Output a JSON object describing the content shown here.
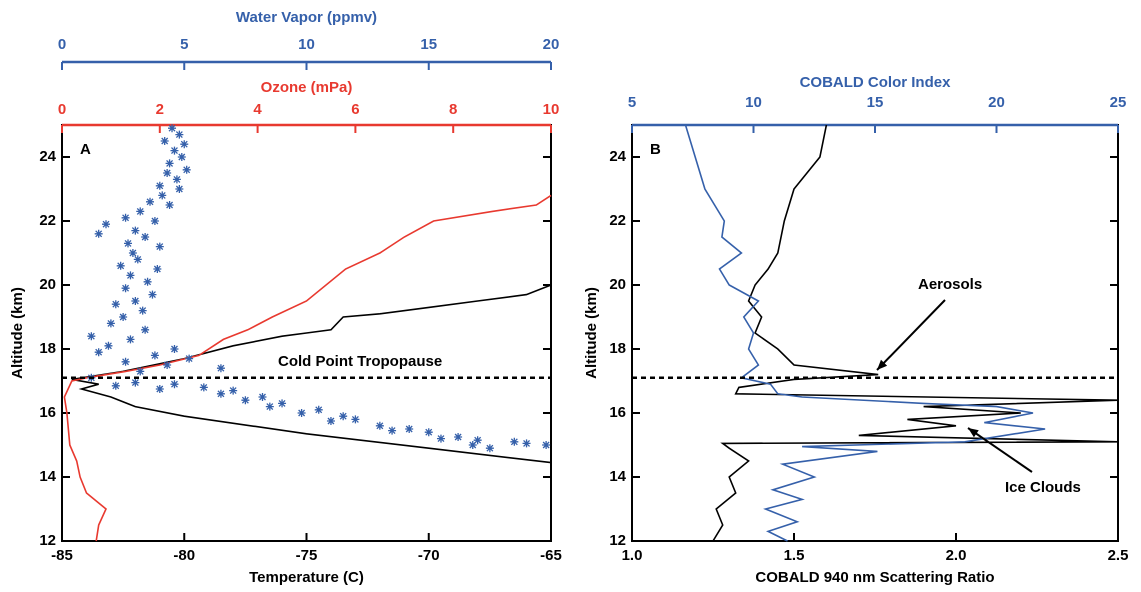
{
  "chart_data": [
    {
      "type": "profile",
      "panel_label": "A",
      "ylabel": "Altitude (km)",
      "ylim": [
        12,
        25
      ],
      "yticks": [
        12,
        14,
        16,
        18,
        20,
        22,
        24
      ],
      "xlabel": "Temperature (C)",
      "xlim": [
        -85,
        -65
      ],
      "xticks": [
        -85,
        -80,
        -75,
        -70,
        -65
      ],
      "xcolor": "#000000",
      "x2label": "Ozone (mPa)",
      "x2lim": [
        0,
        10
      ],
      "x2ticks": [
        0,
        2,
        4,
        6,
        8,
        10
      ],
      "x2color": "#e8392f",
      "x3label": "Water Vapor (ppmv)",
      "x3lim": [
        0,
        20
      ],
      "x3ticks": [
        0,
        5,
        10,
        15,
        20
      ],
      "x3color": "#3560aa",
      "tropopause": 17.1,
      "annotations": [
        "Cold Point Tropopause"
      ],
      "series": [
        {
          "axis": "x",
          "marker": "line",
          "color": "#000000",
          "values": [
            -65,
            -70,
            -75,
            -80,
            -82,
            -83,
            -84.2,
            -83.5,
            -84.6,
            -82.5,
            -80,
            -78,
            -76,
            -75,
            -74,
            -73.5,
            -72,
            -70,
            -68,
            -66,
            -65
          ],
          "altitude": [
            14.45,
            14.9,
            15.35,
            15.9,
            16.2,
            16.5,
            16.75,
            16.9,
            17.05,
            17.3,
            17.7,
            18.1,
            18.4,
            18.5,
            18.6,
            19.0,
            19.1,
            19.3,
            19.5,
            19.7,
            20.0
          ]
        },
        {
          "axis": "x2",
          "marker": "line",
          "color": "#e8392f",
          "values": [
            0.7,
            0.75,
            0.9,
            0.5,
            0.37,
            0.3,
            0.16,
            0.1,
            0.05,
            0.2,
            0.5,
            1.3,
            2.0,
            2.8,
            3.3,
            3.8,
            4.3,
            5.0,
            5.8,
            6.5,
            7.0,
            7.6,
            8.8,
            9.7,
            10
          ],
          "altitude": [
            12,
            12.5,
            13,
            13.5,
            14,
            14.5,
            15,
            16,
            16.5,
            17,
            17.1,
            17.3,
            17.5,
            17.8,
            18.3,
            18.6,
            19,
            19.5,
            20.5,
            21,
            21.5,
            22,
            22.3,
            22.5,
            22.8
          ]
        },
        {
          "axis": "x3",
          "marker": "asterisk",
          "color": "#3560aa",
          "values": [
            4.5,
            4.8,
            4.2,
            5.0,
            4.6,
            4.9,
            4.4,
            5.1,
            4.3,
            4.7,
            4.0,
            4.8,
            4.1,
            3.6,
            4.4,
            3.2,
            2.6,
            3.8,
            1.8,
            3.0,
            1.5,
            3.4,
            2.7,
            4.0,
            2.9,
            3.1,
            2.4,
            3.9,
            2.8,
            3.5,
            2.6,
            3.7,
            3.0,
            2.2,
            3.3,
            2.5,
            2.0,
            3.4,
            1.2,
            2.8,
            1.9,
            4.6,
            1.5,
            3.8,
            5.2,
            2.6,
            4.3,
            6.5,
            3.2,
            1.2,
            3.0,
            4.6,
            2.2,
            5.8,
            7.0,
            4.0,
            6.5,
            8.2,
            7.5,
            9.0,
            8.5,
            10.5,
            9.8,
            11.5,
            12.0,
            11.0,
            13.0,
            14.2,
            13.5,
            15.0,
            16.2,
            15.5,
            17.0,
            18.5,
            16.8,
            19.0,
            19.8,
            17.5
          ],
          "altitude": [
            24.9,
            24.7,
            24.5,
            24.4,
            24.2,
            24.0,
            23.8,
            23.6,
            23.5,
            23.3,
            23.1,
            23.0,
            22.8,
            22.6,
            22.5,
            22.3,
            22.1,
            22.0,
            21.9,
            21.7,
            21.6,
            21.5,
            21.3,
            21.2,
            21.0,
            20.8,
            20.6,
            20.5,
            20.3,
            20.1,
            19.9,
            19.7,
            19.5,
            19.4,
            19.2,
            19.0,
            18.8,
            18.6,
            18.4,
            18.3,
            18.1,
            18.0,
            17.9,
            17.8,
            17.7,
            17.6,
            17.5,
            17.4,
            17.3,
            17.1,
            16.95,
            16.9,
            16.85,
            16.8,
            16.7,
            16.75,
            16.6,
            16.5,
            16.4,
            16.3,
            16.2,
            16.1,
            16.0,
            15.9,
            15.8,
            15.75,
            15.6,
            15.5,
            15.45,
            15.4,
            15.25,
            15.2,
            15.15,
            15.1,
            15.0,
            15.05,
            15.0,
            14.9
          ]
        }
      ]
    },
    {
      "type": "profile",
      "panel_label": "B",
      "ylabel": "Altitude (km)",
      "ylim": [
        12,
        25
      ],
      "yticks": [
        12,
        14,
        16,
        18,
        20,
        22,
        24
      ],
      "xlabel": "COBALD 940 nm Scattering Ratio",
      "xlim": [
        1,
        2.5
      ],
      "xticks": [
        {
          "value": 1,
          "label": "1.0"
        },
        1.5,
        {
          "value": 2,
          "label": "2.0"
        },
        2.5
      ],
      "xcolor": "#000000",
      "x2label": "COBALD Color Index",
      "x2lim": [
        5,
        25
      ],
      "x2ticks": [
        5,
        10,
        15,
        20,
        25
      ],
      "x2color": "#3560aa",
      "tropopause": 17.1,
      "annotations": [
        "Aerosols",
        "Ice Clouds"
      ],
      "series": [
        {
          "axis": "x",
          "marker": "line",
          "color": "#000000",
          "values": [
            1.25,
            1.28,
            1.26,
            1.32,
            1.3,
            1.36,
            1.3,
            1.28,
            2.5,
            1.7,
            2.0,
            1.85,
            2.2,
            1.9,
            2.5,
            1.32,
            1.33,
            1.5,
            1.76,
            1.5,
            1.45,
            1.38,
            1.4,
            1.36,
            1.38,
            1.42,
            1.45,
            1.47,
            1.5,
            1.58,
            1.6
          ],
          "altitude": [
            12,
            12.5,
            13,
            13.5,
            14,
            14.5,
            14.9,
            15.05,
            15.1,
            15.3,
            15.6,
            15.8,
            16.0,
            16.2,
            16.4,
            16.6,
            16.8,
            17.05,
            17.2,
            17.5,
            18,
            18.5,
            19,
            19.5,
            20,
            20.5,
            21,
            22,
            23,
            24,
            25
          ]
        },
        {
          "axis": "x2",
          "marker": "line",
          "color": "#3560aa",
          "values": [
            11.4,
            10.6,
            11.8,
            10.5,
            12.0,
            10.8,
            12.5,
            11.2,
            15.1,
            12.0,
            18.7,
            22.0,
            19.5,
            21.5,
            20.0,
            17.0,
            12.0,
            11.0,
            10.7,
            9.5,
            10.2,
            9.8,
            10.0,
            9.6,
            10.2,
            9.0,
            8.6,
            9.5,
            8.7,
            8.8,
            8.0,
            7.6,
            7.2
          ],
          "altitude": [
            12,
            12.3,
            12.6,
            13,
            13.3,
            13.6,
            14,
            14.4,
            14.8,
            14.95,
            15.1,
            15.5,
            15.7,
            16.0,
            16.2,
            16.3,
            16.5,
            16.6,
            16.9,
            17.1,
            17.5,
            18,
            18.5,
            19,
            19.5,
            20,
            20.5,
            21,
            21.5,
            22,
            23,
            24,
            25
          ]
        }
      ]
    }
  ]
}
